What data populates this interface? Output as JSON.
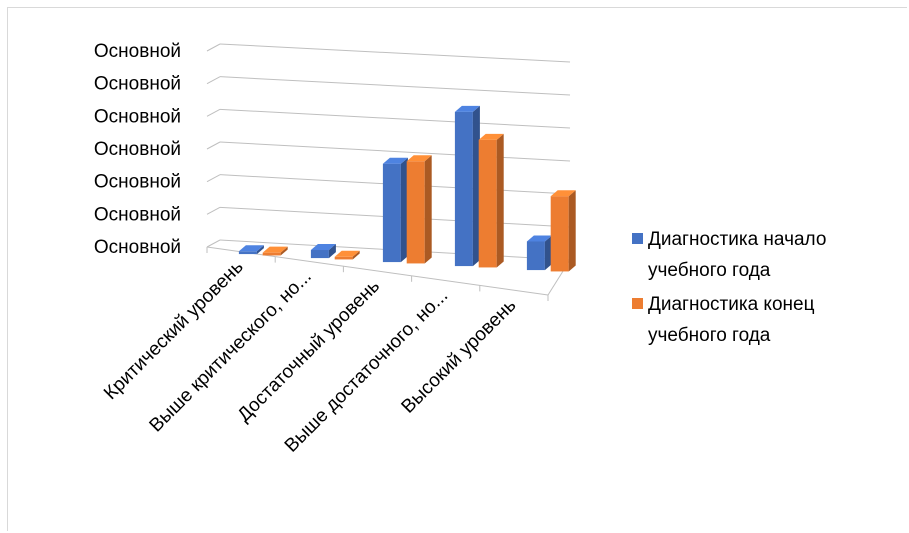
{
  "chart_data": {
    "type": "bar",
    "style": "3d-clustered-column",
    "title": "",
    "xlabel": "",
    "ylabel": "",
    "categories": [
      "Критический уровень",
      "Выше критического, но...",
      "Достаточный уровень",
      "Выше достаточного, но...",
      "Высокий уровень"
    ],
    "series": [
      {
        "name": "Диагностика начало учебного года",
        "color": "#4472C4",
        "values": [
          1,
          3,
          38,
          62,
          12
        ]
      },
      {
        "name": "Диагностика конец учебного года",
        "color": "#ED7D31",
        "values": [
          1,
          1,
          40,
          52,
          32
        ]
      }
    ],
    "y_tick_labels": [
      "Основной",
      "Основной",
      "Основной",
      "Основной",
      "Основной",
      "Основной",
      "Основной"
    ],
    "ylim": [
      0,
      72
    ],
    "grid": true,
    "legend_position": "right",
    "legend": [
      {
        "lines": [
          "Диагностика начало",
          "учебного года"
        ],
        "color": "#4472C4"
      },
      {
        "lines": [
          "Диагностика конец",
          "учебного года"
        ],
        "color": "#ED7D31"
      }
    ]
  }
}
